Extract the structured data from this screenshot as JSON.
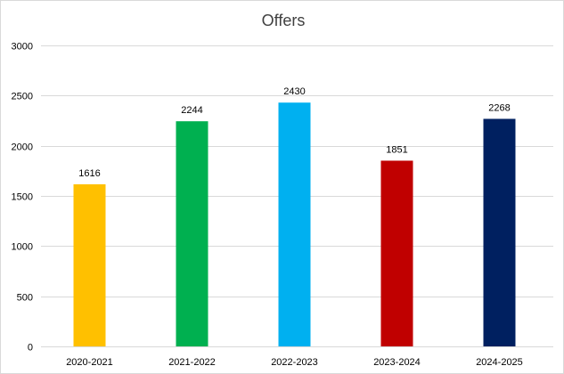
{
  "chart_data": {
    "type": "bar",
    "title": "Offers",
    "xlabel": "",
    "ylabel": "",
    "categories": [
      "2020-2021",
      "2021-2022",
      "2022-2023",
      "2023-2024",
      "2024-2025"
    ],
    "values": [
      1616,
      2244,
      2430,
      1851,
      2268
    ],
    "data_labels": [
      "1616",
      "2244",
      "2430",
      "1851",
      "2268"
    ],
    "colors": [
      "#FFC000",
      "#00B050",
      "#00B0F0",
      "#C00000",
      "#002060"
    ],
    "ylim": [
      0,
      3000
    ],
    "yticks": [
      0,
      500,
      1000,
      1500,
      2000,
      2500,
      3000
    ],
    "ytick_labels": [
      "0",
      "500",
      "1000",
      "1500",
      "2000",
      "2500",
      "3000"
    ],
    "grid": true,
    "legend": "none"
  }
}
